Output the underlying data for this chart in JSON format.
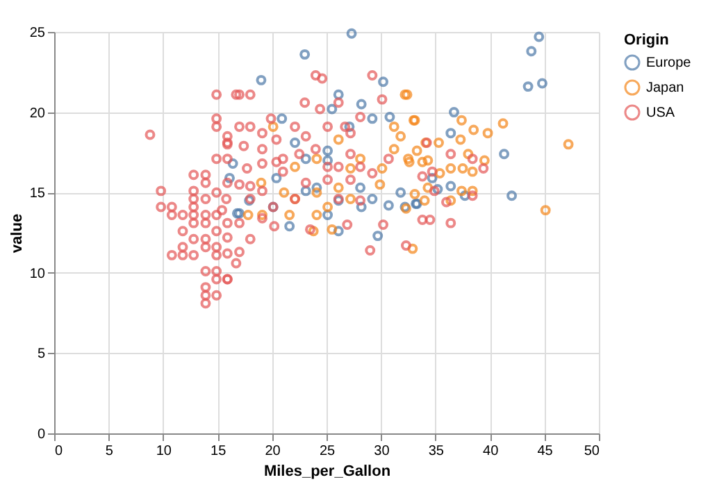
{
  "chart_data": {
    "type": "scatter",
    "xlabel": "Miles_per_Gallon",
    "ylabel": "value",
    "legend_title": "Origin",
    "xlim": [
      0,
      50
    ],
    "xticks": [
      0,
      5,
      10,
      15,
      20,
      25,
      30,
      35,
      40,
      45,
      50
    ],
    "ylim": [
      0,
      25
    ],
    "yticks": [
      0,
      5,
      10,
      15,
      20,
      25
    ],
    "grid": true,
    "legend": "top right",
    "marker": "circle",
    "series": [
      {
        "name": "Europe",
        "color": "#4c78a8",
        "x": [
          44.5,
          43.8,
          43.5,
          44.8,
          36.7,
          36.4,
          41.3,
          34.7,
          33.3,
          36.4,
          35.2,
          37.7,
          42.0,
          27.3,
          23.0,
          19.0,
          30.2,
          26.1,
          28.2,
          25.5,
          27.1,
          29.2,
          30.8,
          22.1,
          25.1,
          25.1,
          23.1,
          16.4,
          20.4,
          16.1,
          24.1,
          28.1,
          23.1,
          17.9,
          26.1,
          29.2,
          31.8,
          20.1,
          25.1,
          17.0,
          21.6,
          26.1,
          28.2,
          32.2,
          29.7,
          30.7,
          33.2,
          16.8,
          20.9
        ],
        "values": [
          24.7,
          23.8,
          21.6,
          21.8,
          20.0,
          18.7,
          17.4,
          15.9,
          14.3,
          15.4,
          15.2,
          14.8,
          14.8,
          24.9,
          23.6,
          22.0,
          21.9,
          21.1,
          20.5,
          20.2,
          19.1,
          19.6,
          19.7,
          18.1,
          17.6,
          17.0,
          17.1,
          16.8,
          15.9,
          15.9,
          15.3,
          15.3,
          15.1,
          14.5,
          14.5,
          14.6,
          15.0,
          14.1,
          13.6,
          13.7,
          12.9,
          12.6,
          14.1,
          14.1,
          12.3,
          14.2,
          14.3,
          13.7,
          19.6
        ]
      },
      {
        "name": "Japan",
        "color": "#f58518",
        "x": [
          47.2,
          45.1,
          41.2,
          39.8,
          38.5,
          37.4,
          37.3,
          35.3,
          34.1,
          33.0,
          32.4,
          33.3,
          32.6,
          33.8,
          34.3,
          38.0,
          39.5,
          36.4,
          37.5,
          38.4,
          35.4,
          34.3,
          33.1,
          34.0,
          36.4,
          37.4,
          38.4,
          32.9,
          32.2,
          33.1,
          31.2,
          31.8,
          31.2,
          32.5,
          30.1,
          28.1,
          27.2,
          26.1,
          24.1,
          22.1,
          20.1,
          19.0,
          21.1,
          22.1,
          24.1,
          26.1,
          25.1,
          24.1,
          21.6,
          19.1,
          17.8,
          23.8,
          25.5,
          27.2,
          29.9,
          32.3
        ],
        "values": [
          18.0,
          13.9,
          19.3,
          18.7,
          18.9,
          19.5,
          18.3,
          18.1,
          18.1,
          19.5,
          21.1,
          17.6,
          16.9,
          16.9,
          17.0,
          17.4,
          17.0,
          16.5,
          16.5,
          16.3,
          16.2,
          15.3,
          14.9,
          14.5,
          14.5,
          15.1,
          15.1,
          11.5,
          21.1,
          19.5,
          19.1,
          18.5,
          17.7,
          17.1,
          16.5,
          17.1,
          16.5,
          18.3,
          17.1,
          16.6,
          19.1,
          15.6,
          15.0,
          14.6,
          15.0,
          15.3,
          14.1,
          13.6,
          13.6,
          13.6,
          13.6,
          12.6,
          12.7,
          14.6,
          15.5,
          14.0
        ]
      },
      {
        "name": "USA",
        "color": "#e45756",
        "x": [
          8.8,
          14.9,
          16.7,
          14.9,
          14.9,
          15.9,
          15.9,
          14.9,
          15.9,
          12.8,
          13.9,
          13.9,
          9.8,
          12.8,
          14.9,
          9.8,
          10.8,
          10.8,
          11.8,
          12.8,
          13.9,
          12.8,
          13.9,
          12.8,
          12.8,
          13.9,
          14.9,
          14.9,
          15.9,
          15.4,
          11.8,
          12.8,
          13.9,
          11.8,
          10.8,
          11.8,
          12.8,
          13.9,
          14.9,
          15.9,
          14.9,
          15.9,
          13.9,
          14.9,
          14.9,
          15.9,
          13.9,
          13.9,
          13.9,
          14.9,
          17.0,
          18.0,
          24.0,
          24.6,
          29.2,
          30.1,
          23.0,
          24.4,
          26.1,
          28.1,
          17.0,
          18.0,
          19.1,
          19.9,
          22.1,
          25.1,
          26.7,
          27.2,
          23.1,
          20.4,
          15.9,
          17.4,
          19.1,
          24.0,
          27.2,
          21.0,
          22.5,
          25.1,
          26.1,
          28.1,
          29.2,
          30.7,
          17.7,
          19.1,
          20.4,
          21.0,
          15.9,
          17.0,
          18.0,
          19.1,
          23.1,
          25.1,
          27.2,
          15.8,
          18.0,
          20.1,
          22.1,
          26.1,
          28.1,
          17.0,
          19.1,
          20.2,
          18.0,
          17.0,
          16.7,
          15.9,
          23.5,
          26.9,
          29.0,
          30.2,
          32.3,
          34.2,
          36.4,
          38.4,
          39.4,
          34.7,
          33.8,
          34.9,
          36.0,
          38.4,
          33.8,
          34.5,
          36.4
        ],
        "values": [
          18.6,
          21.1,
          21.1,
          19.6,
          19.1,
          18.5,
          18.1,
          17.1,
          17.1,
          16.1,
          16.1,
          15.6,
          15.1,
          15.1,
          15.0,
          14.1,
          14.1,
          13.6,
          13.6,
          14.6,
          14.6,
          14.1,
          13.6,
          13.6,
          13.1,
          13.1,
          13.6,
          12.6,
          13.1,
          13.9,
          12.6,
          12.1,
          12.1,
          11.6,
          11.1,
          11.1,
          11.1,
          11.6,
          11.1,
          11.2,
          11.6,
          12.2,
          10.1,
          10.1,
          9.6,
          9.6,
          9.1,
          8.6,
          8.1,
          8.6,
          21.1,
          21.1,
          22.3,
          22.1,
          22.3,
          20.8,
          20.6,
          20.2,
          20.6,
          19.7,
          19.1,
          19.1,
          18.7,
          19.6,
          19.1,
          19.1,
          19.1,
          18.7,
          18.5,
          18.3,
          18.0,
          17.9,
          17.7,
          17.7,
          17.4,
          17.1,
          17.4,
          16.6,
          16.6,
          16.6,
          16.2,
          17.1,
          16.5,
          16.8,
          16.9,
          16.3,
          15.6,
          15.5,
          15.4,
          15.1,
          15.6,
          15.8,
          15.8,
          14.6,
          14.6,
          14.1,
          14.6,
          14.6,
          14.5,
          13.1,
          13.4,
          12.9,
          12.1,
          11.3,
          10.6,
          9.6,
          12.7,
          13.0,
          11.4,
          13.0,
          11.7,
          18.1,
          17.4,
          17.1,
          16.5,
          16.3,
          16.0,
          15.1,
          14.4,
          14.8,
          13.3,
          13.3,
          13.1
        ]
      }
    ]
  }
}
